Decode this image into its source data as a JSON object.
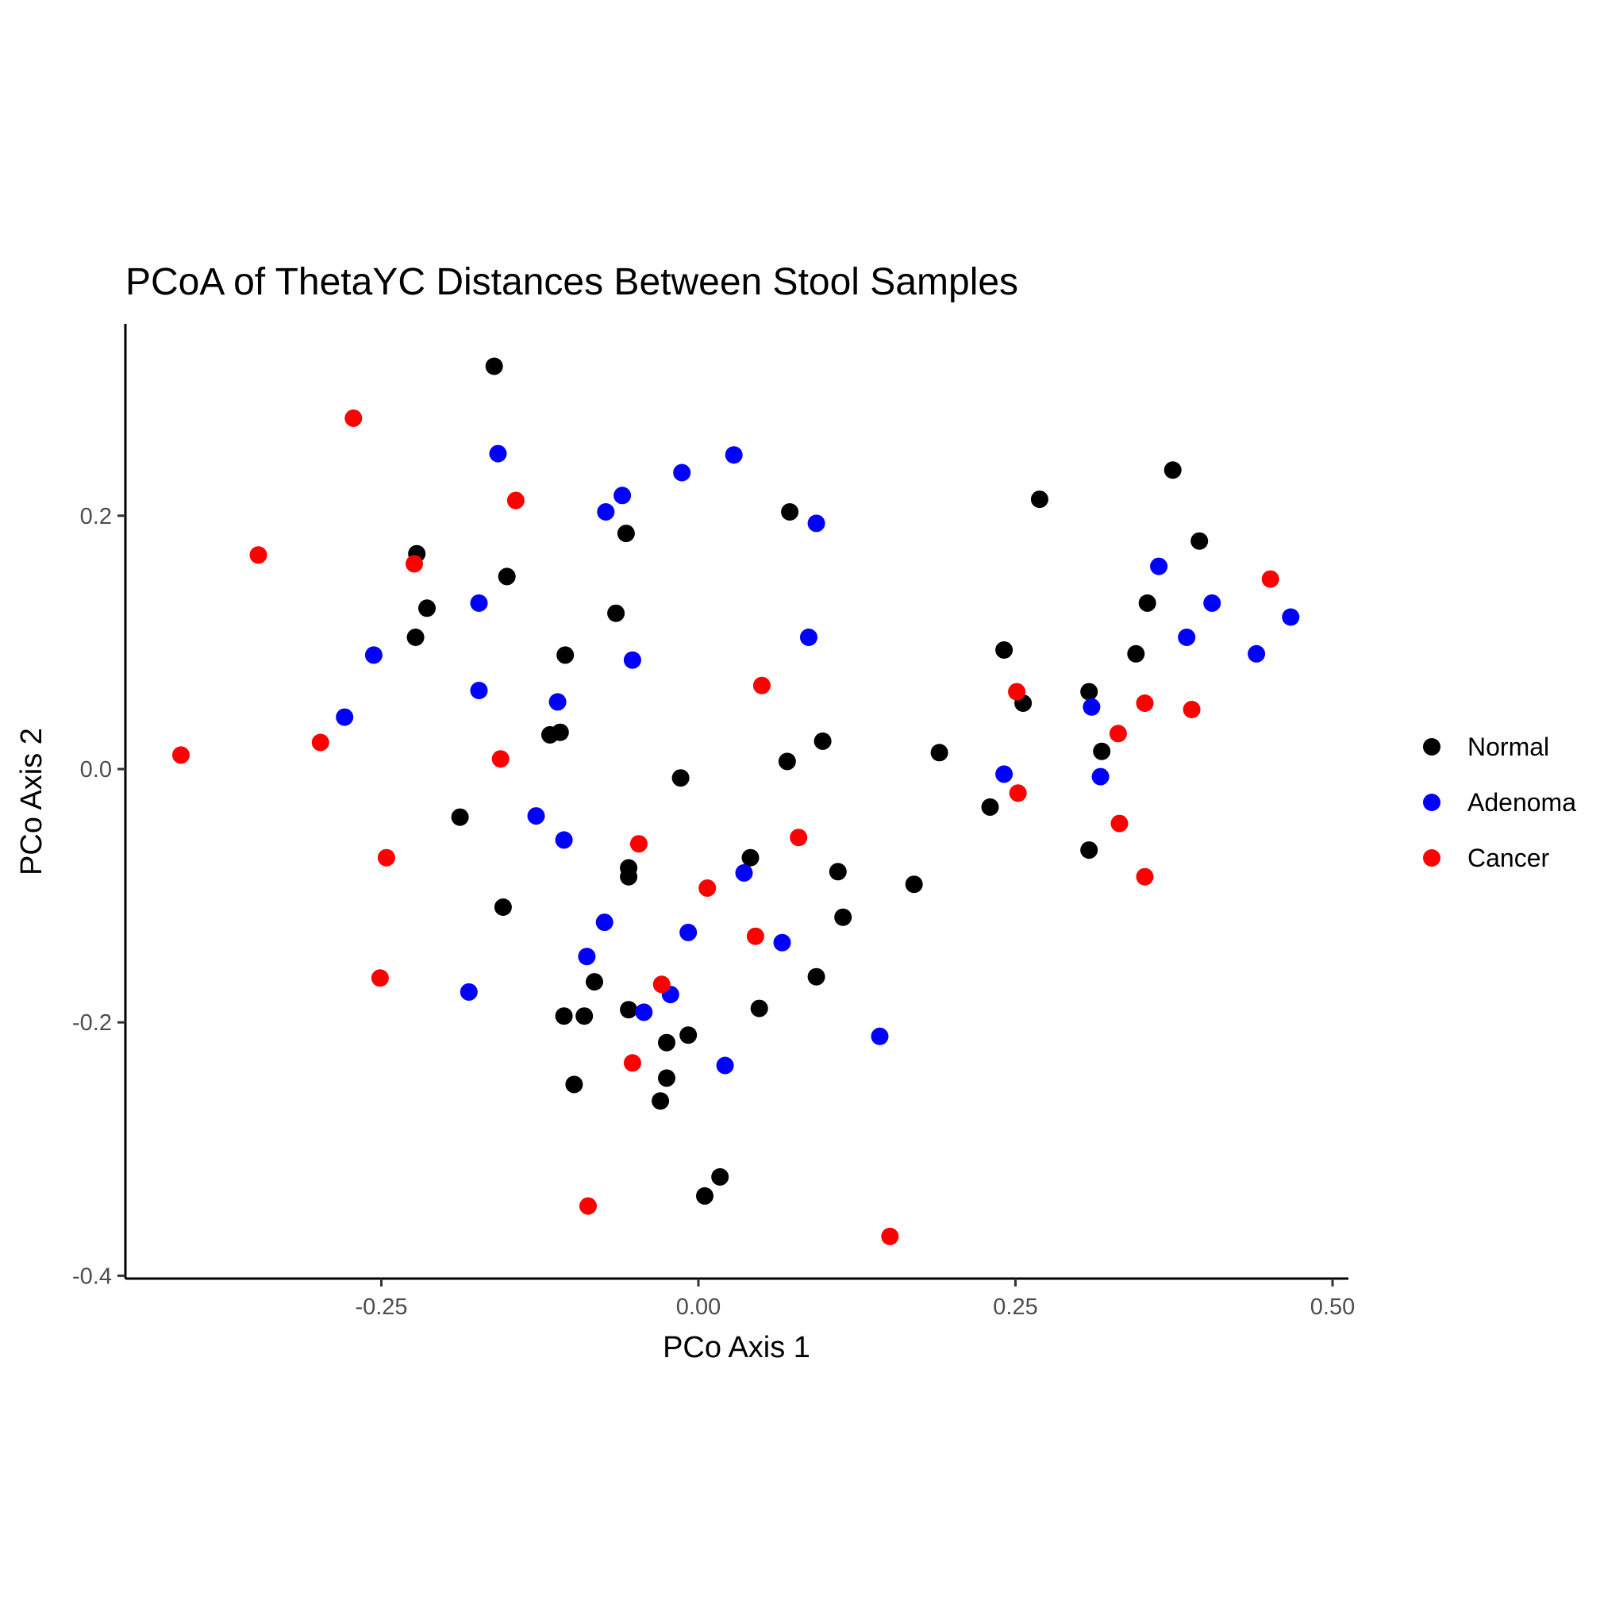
{
  "chart_data": {
    "type": "scatter",
    "title": "PCoA of ThetaYC Distances Between Stool Samples",
    "xlabel": "PCo Axis 1",
    "ylabel": "PCo Axis 2",
    "xlim": [
      -0.45,
      0.51
    ],
    "ylim": [
      -0.4,
      0.35
    ],
    "xticks": [
      -0.25,
      0.0,
      0.25,
      0.5
    ],
    "xtick_labels": [
      "-0.25",
      "0.00",
      "0.25",
      "0.50"
    ],
    "yticks": [
      -0.4,
      -0.2,
      0.0,
      0.2
    ],
    "ytick_labels": [
      "-0.4",
      "-0.2",
      "0.0",
      "0.2"
    ],
    "grid": false,
    "legend_position": "right",
    "series": [
      {
        "name": "Normal",
        "color": "#000000",
        "points": [
          [
            -0.161,
            0.318
          ],
          [
            -0.222,
            0.17
          ],
          [
            -0.151,
            0.152
          ],
          [
            -0.214,
            0.127
          ],
          [
            -0.223,
            0.104
          ],
          [
            -0.057,
            0.186
          ],
          [
            -0.065,
            0.123
          ],
          [
            -0.105,
            0.09
          ],
          [
            -0.117,
            0.027
          ],
          [
            -0.109,
            0.029
          ],
          [
            -0.188,
            -0.038
          ],
          [
            -0.154,
            -0.109
          ],
          [
            -0.055,
            -0.078
          ],
          [
            -0.055,
            -0.085
          ],
          [
            -0.014,
            -0.007
          ],
          [
            0.041,
            -0.07
          ],
          [
            0.07,
            0.006
          ],
          [
            0.098,
            0.022
          ],
          [
            0.072,
            0.203
          ],
          [
            0.11,
            -0.081
          ],
          [
            0.114,
            -0.117
          ],
          [
            0.17,
            -0.091
          ],
          [
            0.19,
            0.013
          ],
          [
            0.093,
            -0.164
          ],
          [
            0.048,
            -0.189
          ],
          [
            -0.082,
            -0.168
          ],
          [
            -0.106,
            -0.195
          ],
          [
            -0.09,
            -0.195
          ],
          [
            -0.098,
            -0.249
          ],
          [
            -0.055,
            -0.19
          ],
          [
            -0.025,
            -0.216
          ],
          [
            -0.025,
            -0.244
          ],
          [
            -0.03,
            -0.262
          ],
          [
            -0.008,
            -0.21
          ],
          [
            0.017,
            -0.322
          ],
          [
            0.005,
            -0.337
          ],
          [
            0.241,
            0.094
          ],
          [
            0.269,
            0.213
          ],
          [
            0.23,
            -0.03
          ],
          [
            0.256,
            0.052
          ],
          [
            0.308,
            0.061
          ],
          [
            0.318,
            0.014
          ],
          [
            0.308,
            -0.064
          ],
          [
            0.345,
            0.091
          ],
          [
            0.354,
            0.131
          ],
          [
            0.374,
            0.236
          ],
          [
            0.395,
            0.18
          ]
        ]
      },
      {
        "name": "Adenoma",
        "color": "#0000ff",
        "points": [
          [
            -0.158,
            0.249
          ],
          [
            -0.06,
            0.216
          ],
          [
            -0.073,
            0.203
          ],
          [
            -0.013,
            0.234
          ],
          [
            0.028,
            0.248
          ],
          [
            0.093,
            0.194
          ],
          [
            -0.173,
            0.131
          ],
          [
            -0.256,
            0.09
          ],
          [
            -0.279,
            0.041
          ],
          [
            -0.173,
            0.062
          ],
          [
            -0.111,
            0.053
          ],
          [
            -0.052,
            0.086
          ],
          [
            0.087,
            0.104
          ],
          [
            -0.128,
            -0.037
          ],
          [
            -0.106,
            -0.056
          ],
          [
            -0.074,
            -0.121
          ],
          [
            -0.088,
            -0.148
          ],
          [
            -0.181,
            -0.176
          ],
          [
            -0.043,
            -0.192
          ],
          [
            -0.022,
            -0.178
          ],
          [
            -0.008,
            -0.129
          ],
          [
            0.036,
            -0.082
          ],
          [
            0.066,
            -0.137
          ],
          [
            0.021,
            -0.234
          ],
          [
            0.143,
            -0.211
          ],
          [
            0.241,
            -0.004
          ],
          [
            0.31,
            0.049
          ],
          [
            0.317,
            -0.006
          ],
          [
            0.363,
            0.16
          ],
          [
            0.385,
            0.104
          ],
          [
            0.405,
            0.131
          ],
          [
            0.44,
            0.091
          ],
          [
            0.467,
            0.12
          ]
        ]
      },
      {
        "name": "Cancer",
        "color": "#ff0000",
        "points": [
          [
            -0.272,
            0.277
          ],
          [
            -0.144,
            0.212
          ],
          [
            -0.347,
            0.169
          ],
          [
            -0.224,
            0.162
          ],
          [
            -0.408,
            0.011
          ],
          [
            -0.298,
            0.021
          ],
          [
            -0.156,
            0.008
          ],
          [
            -0.246,
            -0.07
          ],
          [
            -0.251,
            -0.165
          ],
          [
            -0.047,
            -0.059
          ],
          [
            0.05,
            0.066
          ],
          [
            0.079,
            -0.054
          ],
          [
            0.007,
            -0.094
          ],
          [
            0.045,
            -0.132
          ],
          [
            -0.029,
            -0.17
          ],
          [
            -0.052,
            -0.232
          ],
          [
            -0.087,
            -0.345
          ],
          [
            0.151,
            -0.369
          ],
          [
            0.251,
            0.061
          ],
          [
            0.252,
            -0.019
          ],
          [
            0.331,
            0.028
          ],
          [
            0.352,
            0.052
          ],
          [
            0.389,
            0.047
          ],
          [
            0.332,
            -0.043
          ],
          [
            0.352,
            -0.085
          ],
          [
            0.451,
            0.15
          ]
        ]
      }
    ]
  }
}
